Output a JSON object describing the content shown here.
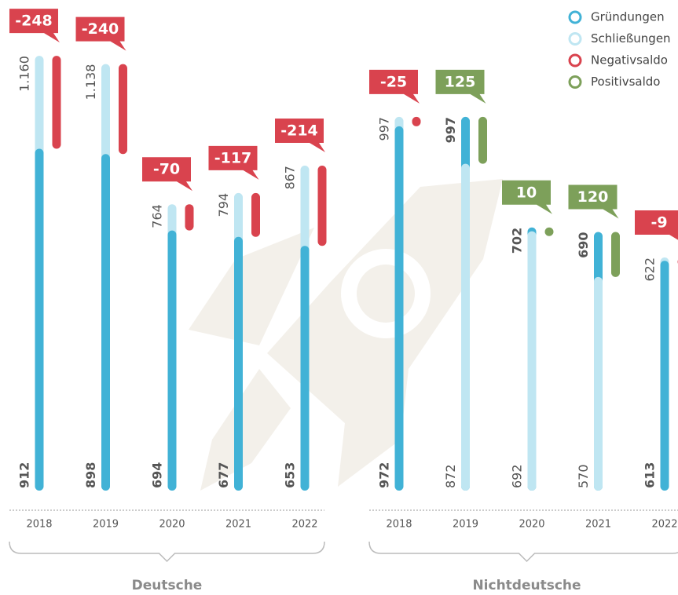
{
  "chart_data": {
    "type": "bar",
    "groups": [
      {
        "label": "Deutsche",
        "categories": [
          "2018",
          "2019",
          "2020",
          "2021",
          "2022"
        ]
      },
      {
        "label": "Nichtdeutsche",
        "categories": [
          "2018",
          "2019",
          "2020",
          "2021",
          "2022"
        ]
      }
    ],
    "series": [
      {
        "name": "Gründungen",
        "color": "#41b2d6",
        "values": [
          [
            912,
            898,
            694,
            677,
            653
          ],
          [
            972,
            997,
            702,
            690,
            613
          ]
        ]
      },
      {
        "name": "Schließungen",
        "color": "#bfe6f2",
        "values": [
          [
            1160,
            1138,
            764,
            794,
            867
          ],
          [
            997,
            872,
            692,
            570,
            622
          ]
        ],
        "value_labels": [
          [
            "1.160",
            "1.138",
            "764",
            "794",
            "867"
          ],
          [
            "997",
            "872",
            "692",
            "570",
            "622"
          ]
        ]
      },
      {
        "name": "Negativsaldo",
        "color": "#d9434e",
        "values": [
          [
            -248,
            -240,
            -70,
            -117,
            -214
          ],
          [
            -25,
            null,
            null,
            null,
            -9
          ]
        ]
      },
      {
        "name": "Positivsaldo",
        "color": "#7da05a",
        "values": [
          [
            null,
            null,
            null,
            null,
            null
          ],
          [
            null,
            125,
            10,
            120,
            null
          ]
        ]
      }
    ],
    "ylim": [
      0,
      1200
    ]
  }
}
